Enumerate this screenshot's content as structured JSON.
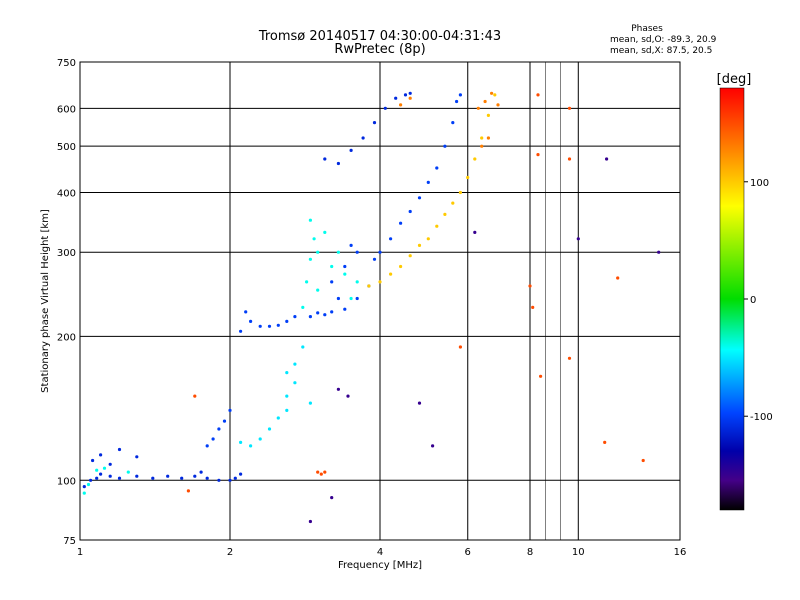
{
  "chart_data": {
    "type": "scatter",
    "title": "Tromsø 20140517 04:30:00-04:31:43",
    "subtitle": "RwPretec (8p)",
    "xlabel": "Frequency [MHz]",
    "ylabel": "Stationary phase Virtual Height [km]",
    "x_scale": "log",
    "y_scale": "log",
    "xlim": [
      1,
      16
    ],
    "ylim": [
      75,
      750
    ],
    "x_ticks": [
      1,
      2,
      4,
      6,
      8,
      10,
      16
    ],
    "x_tick_labels": [
      "1",
      "2",
      "4",
      "6",
      "8",
      "10",
      "16"
    ],
    "y_ticks": [
      75,
      100,
      200,
      300,
      400,
      500,
      600,
      750
    ],
    "y_tick_labels": [
      "75",
      "100",
      "200",
      "300",
      "400",
      "500",
      "600",
      "750"
    ],
    "grid": true,
    "phases_box": {
      "heading": "Phases",
      "line_o": "mean, sd,O: -89.3, 20.9",
      "line_x": "mean, sd,X:  87.5, 20.5"
    },
    "colorbar": {
      "label": "[deg]",
      "range": [
        -180,
        180
      ],
      "ticks": [
        100,
        0,
        -100
      ],
      "tick_labels": [
        "100",
        "0",
        "-100"
      ],
      "colors": [
        "#ff0000",
        "#ff8800",
        "#ffff00",
        "#00dd00",
        "#00ffff",
        "#0044ff",
        "#0000aa",
        "#440088",
        "#000000"
      ]
    },
    "series": [
      {
        "trace": "low-E",
        "phase": -110,
        "points": [
          [
            1.02,
            97
          ],
          [
            1.05,
            100
          ],
          [
            1.08,
            101
          ],
          [
            1.1,
            103
          ],
          [
            1.15,
            102
          ],
          [
            1.2,
            101
          ],
          [
            1.3,
            102
          ],
          [
            1.4,
            101
          ],
          [
            1.5,
            102
          ],
          [
            1.6,
            101
          ],
          [
            1.7,
            102
          ],
          [
            1.75,
            104
          ],
          [
            1.8,
            101
          ],
          [
            1.9,
            100
          ],
          [
            2.0,
            100
          ],
          [
            2.05,
            101
          ],
          [
            2.1,
            103
          ],
          [
            1.06,
            110
          ],
          [
            1.1,
            113
          ],
          [
            1.2,
            116
          ],
          [
            1.3,
            112
          ],
          [
            1.15,
            108
          ]
        ]
      },
      {
        "trace": "low-E-cyan",
        "phase": -40,
        "points": [
          [
            1.02,
            94
          ],
          [
            1.04,
            98
          ],
          [
            1.08,
            105
          ],
          [
            1.25,
            104
          ],
          [
            1.12,
            106
          ]
        ]
      },
      {
        "trace": "E-layer",
        "phase": -100,
        "points": [
          [
            1.8,
            118
          ],
          [
            1.85,
            122
          ],
          [
            1.9,
            128
          ],
          [
            1.95,
            133
          ],
          [
            2.0,
            140
          ],
          [
            2.1,
            205
          ],
          [
            2.15,
            225
          ],
          [
            2.2,
            215
          ],
          [
            2.3,
            210
          ],
          [
            2.4,
            210
          ],
          [
            2.5,
            211
          ],
          [
            2.6,
            215
          ],
          [
            2.7,
            220
          ]
        ]
      },
      {
        "trace": "E-layer-cyan",
        "phase": -50,
        "points": [
          [
            2.1,
            120
          ],
          [
            2.2,
            118
          ],
          [
            2.3,
            122
          ],
          [
            2.4,
            128
          ],
          [
            2.5,
            135
          ],
          [
            2.6,
            140
          ],
          [
            2.6,
            150
          ],
          [
            2.7,
            160
          ],
          [
            2.7,
            175
          ],
          [
            2.8,
            190
          ],
          [
            2.9,
            145
          ],
          [
            2.6,
            168
          ]
        ]
      },
      {
        "trace": "F-cyan",
        "phase": -40,
        "points": [
          [
            2.8,
            230
          ],
          [
            2.85,
            260
          ],
          [
            2.9,
            290
          ],
          [
            2.95,
            320
          ],
          [
            2.9,
            350
          ],
          [
            3.0,
            300
          ],
          [
            3.0,
            250
          ],
          [
            3.1,
            330
          ],
          [
            3.2,
            280
          ],
          [
            3.3,
            300
          ],
          [
            3.4,
            270
          ],
          [
            3.5,
            240
          ],
          [
            3.6,
            260
          ]
        ]
      },
      {
        "trace": "F-blue",
        "phase": -100,
        "points": [
          [
            2.9,
            220
          ],
          [
            3.0,
            224
          ],
          [
            3.1,
            222
          ],
          [
            3.2,
            225
          ],
          [
            3.4,
            228
          ],
          [
            3.6,
            240
          ],
          [
            3.8,
            255
          ],
          [
            3.9,
            290
          ],
          [
            4.0,
            300
          ],
          [
            4.2,
            320
          ],
          [
            4.4,
            345
          ],
          [
            4.6,
            365
          ],
          [
            4.8,
            390
          ],
          [
            5.0,
            420
          ],
          [
            5.2,
            450
          ],
          [
            5.4,
            500
          ],
          [
            5.6,
            560
          ],
          [
            5.7,
            620
          ],
          [
            5.8,
            640
          ],
          [
            3.2,
            260
          ],
          [
            3.4,
            280
          ],
          [
            3.6,
            300
          ],
          [
            3.3,
            240
          ],
          [
            3.5,
            310
          ]
        ]
      },
      {
        "trace": "F2-upper",
        "phase": -110,
        "points": [
          [
            3.1,
            470
          ],
          [
            3.3,
            460
          ],
          [
            3.5,
            490
          ],
          [
            3.7,
            520
          ],
          [
            3.9,
            560
          ],
          [
            4.1,
            600
          ],
          [
            4.3,
            630
          ],
          [
            4.5,
            640
          ],
          [
            4.6,
            645
          ]
        ]
      },
      {
        "trace": "X-yellow",
        "phase": 100,
        "points": [
          [
            3.8,
            255
          ],
          [
            4.0,
            260
          ],
          [
            4.2,
            270
          ],
          [
            4.4,
            280
          ],
          [
            4.6,
            295
          ],
          [
            4.8,
            310
          ],
          [
            5.0,
            320
          ],
          [
            5.2,
            340
          ],
          [
            5.4,
            360
          ],
          [
            5.6,
            380
          ],
          [
            5.8,
            400
          ],
          [
            6.0,
            430
          ],
          [
            6.2,
            470
          ],
          [
            6.4,
            520
          ],
          [
            6.6,
            580
          ],
          [
            6.8,
            640
          ]
        ]
      },
      {
        "trace": "X-orange",
        "phase": 130,
        "points": [
          [
            6.3,
            600
          ],
          [
            6.5,
            620
          ],
          [
            6.7,
            645
          ],
          [
            6.9,
            610
          ],
          [
            6.4,
            500
          ],
          [
            6.6,
            520
          ],
          [
            4.4,
            610
          ],
          [
            4.6,
            630
          ]
        ]
      },
      {
        "trace": "scattered",
        "phase": 150,
        "points": [
          [
            3.0,
            104
          ],
          [
            3.05,
            103
          ],
          [
            3.1,
            104
          ],
          [
            8.3,
            640
          ],
          [
            9.6,
            600
          ],
          [
            8.3,
            480
          ],
          [
            9.6,
            470
          ],
          [
            8.1,
            230
          ],
          [
            8.4,
            165
          ],
          [
            9.6,
            180
          ],
          [
            12.0,
            265
          ],
          [
            13.5,
            110
          ],
          [
            11.3,
            120
          ],
          [
            8.0,
            255
          ],
          [
            5.8,
            190
          ],
          [
            1.7,
            150
          ],
          [
            1.65,
            95
          ]
        ]
      },
      {
        "trace": "scattered-dark",
        "phase": -150,
        "points": [
          [
            3.2,
            92
          ],
          [
            3.3,
            155
          ],
          [
            3.45,
            150
          ],
          [
            4.8,
            145
          ],
          [
            5.1,
            118
          ],
          [
            10.0,
            320
          ],
          [
            14.5,
            300
          ],
          [
            2.9,
            82
          ],
          [
            11.4,
            470
          ],
          [
            6.2,
            330
          ]
        ]
      }
    ]
  }
}
